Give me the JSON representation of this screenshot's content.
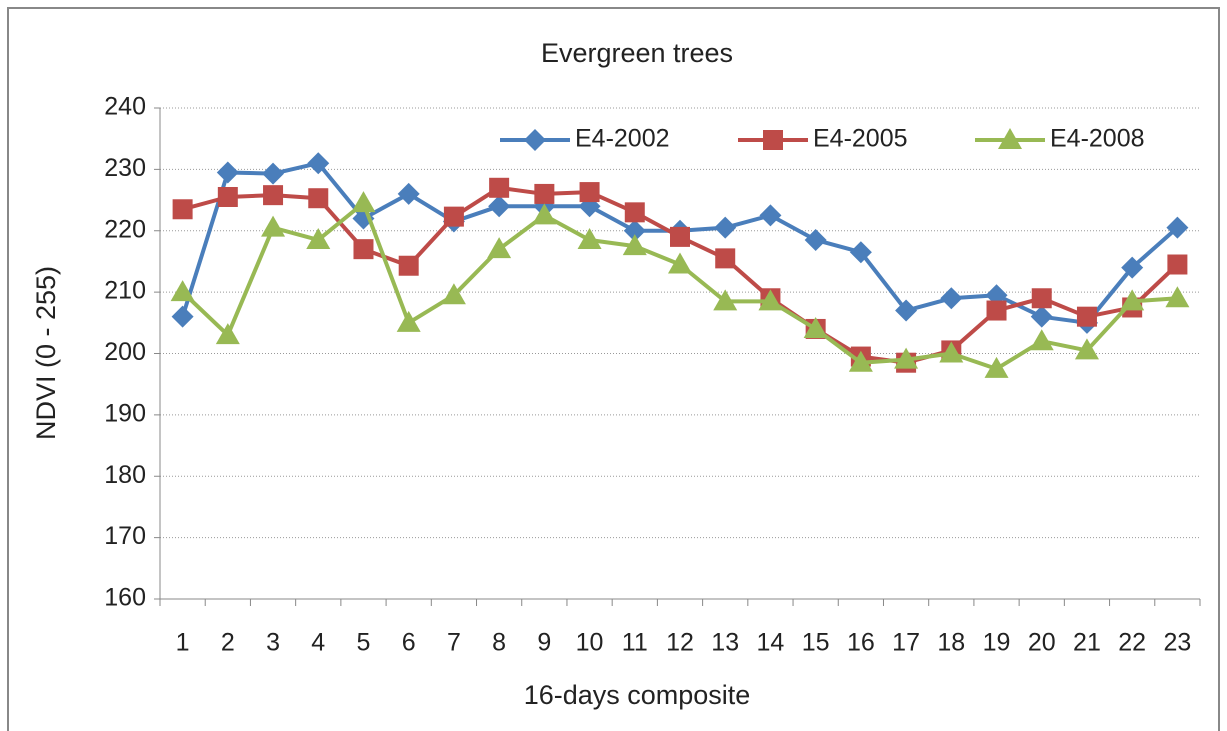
{
  "chart_data": {
    "type": "line",
    "title": "Evergreen trees",
    "x_label": "16-days composite",
    "y_label": "NDVI (0 - 255)",
    "categories": [
      "1",
      "2",
      "3",
      "4",
      "5",
      "6",
      "7",
      "8",
      "9",
      "10",
      "11",
      "12",
      "13",
      "14",
      "15",
      "16",
      "17",
      "18",
      "19",
      "20",
      "21",
      "22",
      "23"
    ],
    "ylim": [
      160,
      240
    ],
    "yticks": [
      160,
      170,
      180,
      190,
      200,
      210,
      220,
      230,
      240
    ],
    "grid": true,
    "legend": "top-right",
    "series": [
      {
        "name": "E4-2002",
        "color": "#4a7ebb",
        "marker": "diamond",
        "values": [
          206,
          229.5,
          229.3,
          231,
          222,
          226,
          221.5,
          224,
          224,
          224,
          220,
          220,
          220.5,
          222.5,
          218.5,
          216.5,
          207,
          209,
          209.5,
          206,
          205,
          214,
          220.5
        ]
      },
      {
        "name": "E4-2005",
        "color": "#be4b48",
        "marker": "square",
        "values": [
          223.5,
          225.5,
          225.8,
          225.3,
          217,
          214.3,
          222.3,
          227,
          226,
          226.3,
          223,
          219,
          215.5,
          209,
          204,
          199.5,
          198.5,
          200.5,
          207,
          209,
          206,
          207.5,
          214.5
        ]
      },
      {
        "name": "E4-2008",
        "color": "#98b954",
        "marker": "triangle",
        "values": [
          210,
          203,
          220.5,
          218.5,
          224.5,
          205,
          209.5,
          217,
          222.5,
          218.5,
          217.5,
          214.5,
          208.5,
          208.5,
          204,
          198.5,
          199,
          200,
          197.5,
          202,
          200.5,
          208.5,
          209
        ]
      }
    ]
  }
}
